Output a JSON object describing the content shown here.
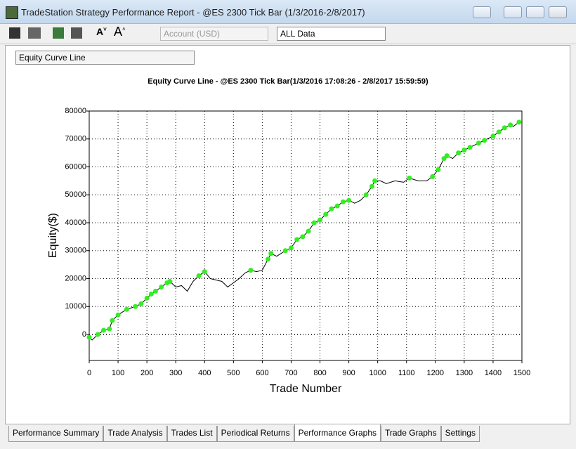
{
  "window": {
    "title": "TradeStation Strategy Performance Report - @ES 2300 Tick Bar (1/3/2016-2/8/2017)"
  },
  "toolbar": {
    "account": "Account (USD)",
    "range": "ALL Data"
  },
  "graph_select": "Equity Curve Line",
  "tabs": [
    "Performance Summary",
    "Trade Analysis",
    "Trades List",
    "Periodical Returns",
    "Performance Graphs",
    "Trade Graphs",
    "Settings"
  ],
  "active_tab": 4,
  "chart_data": {
    "type": "line",
    "title": "Equity Curve Line - @ES 2300 Tick Bar(1/3/2016 17:08:26 - 2/8/2017 15:59:59)",
    "x_label": "Trade Number",
    "y_label": "Equity($)",
    "x": [
      0,
      10,
      30,
      50,
      70,
      80,
      100,
      130,
      160,
      180,
      200,
      215,
      230,
      250,
      270,
      280,
      300,
      320,
      340,
      360,
      380,
      400,
      420,
      440,
      460,
      480,
      500,
      520,
      540,
      560,
      580,
      600,
      620,
      630,
      650,
      680,
      700,
      720,
      740,
      760,
      780,
      800,
      820,
      840,
      860,
      880,
      900,
      920,
      940,
      960,
      980,
      990,
      1010,
      1030,
      1060,
      1090,
      1110,
      1140,
      1170,
      1190,
      1210,
      1230,
      1240,
      1260,
      1280,
      1300,
      1320,
      1350,
      1370,
      1400,
      1420,
      1440,
      1460,
      1470,
      1490
    ],
    "values": [
      -1000,
      -2000,
      0,
      1500,
      2000,
      5000,
      7000,
      9000,
      10000,
      11000,
      13000,
      14500,
      15500,
      17000,
      18500,
      19000,
      17000,
      17500,
      15500,
      19000,
      21000,
      22500,
      20000,
      19500,
      19000,
      17000,
      18500,
      20000,
      22000,
      23000,
      22500,
      23000,
      27000,
      29000,
      28000,
      30000,
      31000,
      34000,
      35000,
      37000,
      40000,
      41000,
      43000,
      45000,
      46000,
      47500,
      48000,
      47000,
      48000,
      50000,
      53000,
      55000,
      55000,
      54000,
      55000,
      54500,
      56000,
      55000,
      55000,
      56500,
      59000,
      63000,
      64000,
      63000,
      65000,
      66000,
      67000,
      68500,
      69500,
      71000,
      72500,
      74000,
      75000,
      74500,
      76000
    ],
    "color": "#000000",
    "high_color": "#33ee22",
    "xlim": [
      0,
      1500
    ],
    "xticks": [
      0,
      100,
      200,
      300,
      400,
      500,
      600,
      700,
      800,
      900,
      1000,
      1100,
      1200,
      1300,
      1400,
      1500
    ],
    "ylim": [
      -9300,
      80000
    ],
    "yticks": [
      0,
      10000,
      20000,
      30000,
      40000,
      50000,
      60000,
      70000,
      80000
    ],
    "grid": true
  }
}
